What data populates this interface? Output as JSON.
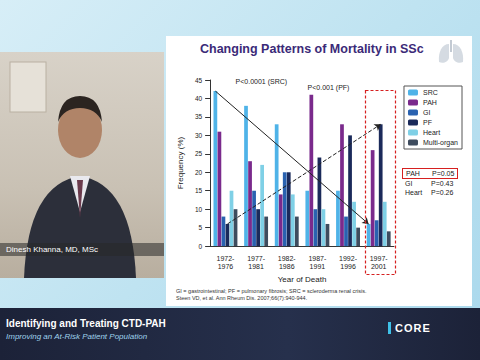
{
  "header": {
    "title": "Changing Patterns of Mortality in SSc"
  },
  "speaker": {
    "name": "Dinesh Khanna, MD, MSc"
  },
  "chart_data": {
    "type": "bar",
    "xlabel": "Year of Death",
    "ylabel": "Frequency (%)",
    "categories": [
      "1972-1976",
      "1977-1981",
      "1982-1986",
      "1987-1991",
      "1992-1996",
      "1997-2001"
    ],
    "series": [
      {
        "name": "SRC",
        "color": "#4fb3e8",
        "values": [
          42,
          38,
          33,
          15,
          15,
          6
        ]
      },
      {
        "name": "PAH",
        "color": "#7a2a8c",
        "values": [
          31,
          23,
          14,
          41,
          33,
          26
        ]
      },
      {
        "name": "GI",
        "color": "#2a62b0",
        "values": [
          8,
          15,
          20,
          10,
          8,
          7
        ]
      },
      {
        "name": "PF",
        "color": "#1b2a5a",
        "values": [
          6,
          10,
          20,
          24,
          30,
          33
        ]
      },
      {
        "name": "Heart",
        "color": "#7fd0e6",
        "values": [
          15,
          22,
          14,
          10,
          12,
          12
        ]
      },
      {
        "name": "Multi-organ",
        "color": "#3e4c5e",
        "values": [
          10,
          8,
          8,
          6,
          5,
          4
        ]
      }
    ],
    "ylim": [
      0,
      45
    ],
    "yticks": [
      0,
      5,
      10,
      15,
      20,
      25,
      30,
      35,
      40,
      45
    ],
    "grid": false,
    "legend": "right",
    "trends": [
      {
        "series": "SRC",
        "label": "P<0.0001 (SRC)",
        "line_style": "solid"
      },
      {
        "series": "PF",
        "label": "P<0.001 (PF)",
        "line_style": "dashed"
      }
    ],
    "p_values": [
      {
        "label": "PAH",
        "text": "P=0.05"
      },
      {
        "label": "GI",
        "text": "P=0.43"
      },
      {
        "label": "Heart",
        "text": "P=0.26"
      }
    ]
  },
  "footnotes": [
    "GI = gastrointestinal; PF = pulmonary fibrosis; SRC = scleroderma renal crisis.",
    "Steen VD, et al. Ann Rheum Dis. 2007;66(7):940-944."
  ],
  "banner": {
    "title": "Identifying and Treating CTD-PAH",
    "subtitle": "Improving an At-Risk Patient Population",
    "logo": "CORE"
  }
}
